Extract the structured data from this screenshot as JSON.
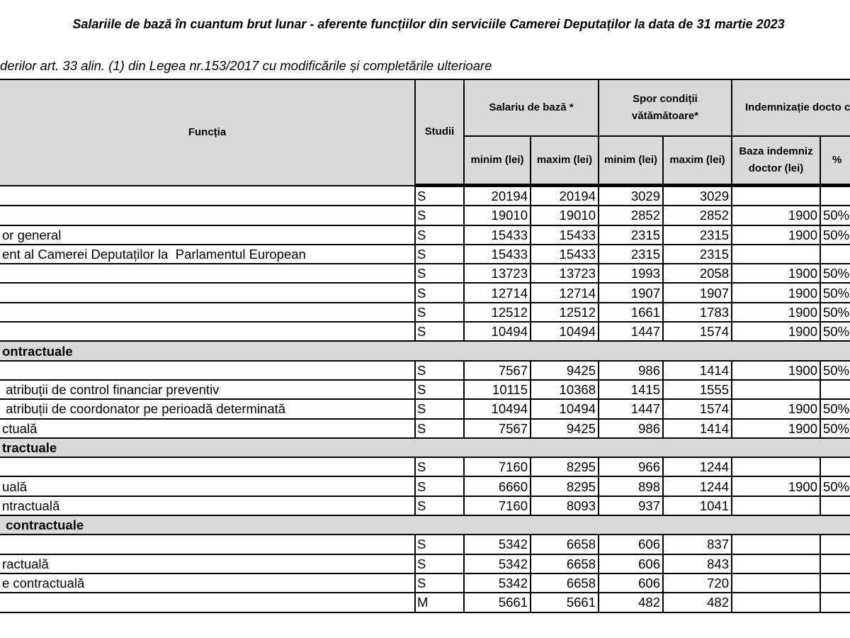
{
  "title": "Salariile de bază în cuantum brut lunar - aferente funcțiilor din serviciile Camerei Deputaților la data de 31 martie 2023",
  "subtitle": "derilor art. 33  alin. (1) din Legea nr.153/2017 cu modificările și completările ulterioare",
  "header": {
    "functia": "Funcția",
    "studii": "Studii",
    "salariu": "Salariu de bază *",
    "spor": "Spor condiții vătămătoare*",
    "indemnizatie": "Indemnizație docto cazul) *",
    "minim": "minim (lei)",
    "maxim": "maxim (lei)",
    "spor_minim": "minim (lei)",
    "spor_maxim": "maxim (lei)",
    "baza": "Baza indemniz doctor (lei)",
    "pct": "%"
  },
  "rows": [
    {
      "f": "",
      "s": "S",
      "a": "20194",
      "b": "20194",
      "c": "3029",
      "d": "3029",
      "e": "",
      "p": ""
    },
    {
      "f": "",
      "s": "S",
      "a": "19010",
      "b": "19010",
      "c": "2852",
      "d": "2852",
      "e": "1900",
      "p": "50%"
    },
    {
      "f": "or general",
      "s": "S",
      "a": "15433",
      "b": "15433",
      "c": "2315",
      "d": "2315",
      "e": "1900",
      "p": "50%"
    },
    {
      "f": "ent al Camerei Deputaților la  Parlamentul European",
      "s": "S",
      "a": "15433",
      "b": "15433",
      "c": "2315",
      "d": "2315",
      "e": "",
      "p": ""
    },
    {
      "f": "",
      "s": "S",
      "a": "13723",
      "b": "13723",
      "c": "1993",
      "d": "2058",
      "e": "1900",
      "p": "50%"
    },
    {
      "f": "",
      "s": "S",
      "a": "12714",
      "b": "12714",
      "c": "1907",
      "d": "1907",
      "e": "1900",
      "p": "50%"
    },
    {
      "f": "",
      "s": "S",
      "a": "12512",
      "b": "12512",
      "c": "1661",
      "d": "1783",
      "e": "1900",
      "p": "50%"
    },
    {
      "f": "",
      "s": "S",
      "a": "10494",
      "b": "10494",
      "c": "1447",
      "d": "1574",
      "e": "1900",
      "p": "50%"
    },
    {
      "section": "ontractuale"
    },
    {
      "f": "",
      "s": "S",
      "a": "7567",
      "b": "9425",
      "c": "986",
      "d": "1414",
      "e": "1900",
      "p": "50%"
    },
    {
      "f": " atribuții de control financiar preventiv",
      "s": "S",
      "a": "10115",
      "b": "10368",
      "c": "1415",
      "d": "1555",
      "e": "",
      "p": ""
    },
    {
      "f": " atribuții de coordonator pe perioadă determinată",
      "s": "S",
      "a": "10494",
      "b": "10494",
      "c": "1447",
      "d": "1574",
      "e": "1900",
      "p": "50%"
    },
    {
      "f": "ctuală",
      "s": "S",
      "a": "7567",
      "b": "9425",
      "c": "986",
      "d": "1414",
      "e": "1900",
      "p": "50%"
    },
    {
      "section": "tractuale"
    },
    {
      "f": "",
      "s": "S",
      "a": "7160",
      "b": "8295",
      "c": "966",
      "d": "1244",
      "e": "",
      "p": ""
    },
    {
      "f": "uală",
      "s": "S",
      "a": "6660",
      "b": "8295",
      "c": "898",
      "d": "1244",
      "e": "1900",
      "p": "50%"
    },
    {
      "f": "ntractuală",
      "s": "S",
      "a": "7160",
      "b": "8093",
      "c": "937",
      "d": "1041",
      "e": "",
      "p": ""
    },
    {
      "section": " contractuale"
    },
    {
      "f": "",
      "s": "S",
      "a": "5342",
      "b": "6658",
      "c": "606",
      "d": "837",
      "e": "",
      "p": ""
    },
    {
      "f": "ractuală",
      "s": "S",
      "a": "5342",
      "b": "6658",
      "c": "606",
      "d": "843",
      "e": "",
      "p": ""
    },
    {
      "f": "e contractuală",
      "s": "S",
      "a": "5342",
      "b": "6658",
      "c": "606",
      "d": "720",
      "e": "",
      "p": ""
    },
    {
      "f": "",
      "s": "M",
      "a": "5661",
      "b": "5661",
      "c": "482",
      "d": "482",
      "e": "",
      "p": ""
    }
  ]
}
